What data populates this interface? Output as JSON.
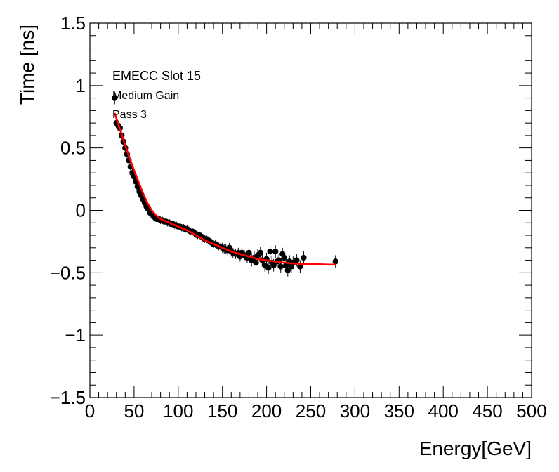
{
  "chart_data": {
    "type": "scatter",
    "xlabel": "Energy[GeV]",
    "ylabel": "Time [ns]",
    "xlim": [
      0,
      500
    ],
    "ylim": [
      -1.5,
      1.5
    ],
    "x_ticks": [
      0,
      50,
      100,
      150,
      200,
      250,
      300,
      350,
      400,
      450,
      500
    ],
    "x_tick_labels": [
      "0",
      "50",
      "100",
      "150",
      "200",
      "250",
      "300",
      "350",
      "400",
      "450",
      "500"
    ],
    "y_ticks": [
      -1.5,
      -1,
      -0.5,
      0,
      0.5,
      1,
      1.5
    ],
    "y_tick_labels": [
      "−1.5",
      "−1",
      "−0.5",
      "0",
      "0.5",
      "1",
      "1.5"
    ],
    "grid": false,
    "annotations": [
      "EMECC Slot 15",
      "Medium Gain",
      "Pass 3"
    ],
    "colors": {
      "points": "#000000",
      "fit": "#ff0000",
      "frame": "#000000"
    },
    "series": [
      {
        "type": "scatter_with_errorbars",
        "points": [
          [
            28,
            0.9,
            0.05
          ],
          [
            30,
            0.7,
            0.04
          ],
          [
            32,
            0.68,
            0.04
          ],
          [
            34,
            0.66,
            0.03
          ],
          [
            36,
            0.6,
            0.03
          ],
          [
            38,
            0.55,
            0.03
          ],
          [
            40,
            0.5,
            0.03
          ],
          [
            42,
            0.45,
            0.03
          ],
          [
            44,
            0.4,
            0.03
          ],
          [
            46,
            0.35,
            0.03
          ],
          [
            48,
            0.3,
            0.03
          ],
          [
            50,
            0.27,
            0.03
          ],
          [
            52,
            0.23,
            0.03
          ],
          [
            54,
            0.19,
            0.03
          ],
          [
            56,
            0.15,
            0.03
          ],
          [
            58,
            0.12,
            0.03
          ],
          [
            60,
            0.09,
            0.03
          ],
          [
            62,
            0.06,
            0.03
          ],
          [
            64,
            0.03,
            0.03
          ],
          [
            66,
            0.01,
            0.03
          ],
          [
            68,
            -0.02,
            0.03
          ],
          [
            70,
            -0.03,
            0.03
          ],
          [
            72,
            -0.05,
            0.03
          ],
          [
            74,
            -0.06,
            0.03
          ],
          [
            76,
            -0.07,
            0.03
          ],
          [
            78,
            -0.07,
            0.03
          ],
          [
            80,
            -0.08,
            0.03
          ],
          [
            82,
            -0.08,
            0.03
          ],
          [
            84,
            -0.09,
            0.03
          ],
          [
            86,
            -0.09,
            0.03
          ],
          [
            88,
            -0.1,
            0.03
          ],
          [
            90,
            -0.1,
            0.03
          ],
          [
            92,
            -0.11,
            0.03
          ],
          [
            94,
            -0.11,
            0.03
          ],
          [
            96,
            -0.12,
            0.03
          ],
          [
            98,
            -0.12,
            0.03
          ],
          [
            100,
            -0.13,
            0.03
          ],
          [
            102,
            -0.13,
            0.03
          ],
          [
            104,
            -0.14,
            0.03
          ],
          [
            106,
            -0.14,
            0.03
          ],
          [
            108,
            -0.15,
            0.03
          ],
          [
            110,
            -0.15,
            0.03
          ],
          [
            112,
            -0.16,
            0.03
          ],
          [
            114,
            -0.17,
            0.03
          ],
          [
            116,
            -0.17,
            0.03
          ],
          [
            118,
            -0.18,
            0.03
          ],
          [
            120,
            -0.19,
            0.03
          ],
          [
            122,
            -0.2,
            0.03
          ],
          [
            124,
            -0.2,
            0.03
          ],
          [
            126,
            -0.21,
            0.03
          ],
          [
            128,
            -0.22,
            0.03
          ],
          [
            130,
            -0.23,
            0.03
          ],
          [
            132,
            -0.23,
            0.03
          ],
          [
            134,
            -0.24,
            0.03
          ],
          [
            136,
            -0.25,
            0.03
          ],
          [
            138,
            -0.26,
            0.03
          ],
          [
            140,
            -0.27,
            0.03
          ],
          [
            142,
            -0.27,
            0.03
          ],
          [
            144,
            -0.28,
            0.03
          ],
          [
            146,
            -0.29,
            0.03
          ],
          [
            148,
            -0.29,
            0.03
          ],
          [
            150,
            -0.3,
            0.04
          ],
          [
            152,
            -0.31,
            0.04
          ],
          [
            154,
            -0.31,
            0.04
          ],
          [
            156,
            -0.32,
            0.04
          ],
          [
            158,
            -0.3,
            0.04
          ],
          [
            160,
            -0.33,
            0.04
          ],
          [
            162,
            -0.34,
            0.04
          ],
          [
            165,
            -0.35,
            0.04
          ],
          [
            168,
            -0.34,
            0.04
          ],
          [
            170,
            -0.37,
            0.04
          ],
          [
            172,
            -0.34,
            0.04
          ],
          [
            175,
            -0.36,
            0.04
          ],
          [
            178,
            -0.38,
            0.04
          ],
          [
            180,
            -0.34,
            0.05
          ],
          [
            183,
            -0.4,
            0.05
          ],
          [
            186,
            -0.38,
            0.05
          ],
          [
            188,
            -0.42,
            0.05
          ],
          [
            190,
            -0.36,
            0.05
          ],
          [
            193,
            -0.34,
            0.05
          ],
          [
            195,
            -0.4,
            0.05
          ],
          [
            198,
            -0.44,
            0.05
          ],
          [
            200,
            -0.39,
            0.05
          ],
          [
            202,
            -0.46,
            0.05
          ],
          [
            204,
            -0.33,
            0.05
          ],
          [
            206,
            -0.42,
            0.05
          ],
          [
            208,
            -0.44,
            0.05
          ],
          [
            210,
            -0.33,
            0.05
          ],
          [
            212,
            -0.41,
            0.05
          ],
          [
            214,
            -0.4,
            0.05
          ],
          [
            216,
            -0.45,
            0.05
          ],
          [
            218,
            -0.35,
            0.05
          ],
          [
            220,
            -0.38,
            0.05
          ],
          [
            222,
            -0.44,
            0.05
          ],
          [
            224,
            -0.48,
            0.05
          ],
          [
            226,
            -0.41,
            0.05
          ],
          [
            228,
            -0.45,
            0.05
          ],
          [
            230,
            -0.42,
            0.05
          ],
          [
            234,
            -0.4,
            0.05
          ],
          [
            238,
            -0.45,
            0.05
          ],
          [
            242,
            -0.38,
            0.05
          ],
          [
            278,
            -0.41,
            0.05
          ]
        ]
      }
    ],
    "fit": {
      "x": [
        28,
        35,
        40,
        45,
        50,
        55,
        60,
        65,
        70,
        75,
        80,
        90,
        100,
        110,
        120,
        130,
        140,
        150,
        160,
        170,
        180,
        190,
        200,
        210,
        220,
        230,
        240,
        250,
        260,
        270,
        278
      ],
      "y": [
        0.78,
        0.63,
        0.52,
        0.42,
        0.32,
        0.23,
        0.14,
        0.06,
        0.0,
        -0.04,
        -0.07,
        -0.1,
        -0.13,
        -0.16,
        -0.2,
        -0.24,
        -0.27,
        -0.3,
        -0.33,
        -0.35,
        -0.37,
        -0.39,
        -0.4,
        -0.41,
        -0.42,
        -0.425,
        -0.43,
        -0.43,
        -0.432,
        -0.435,
        -0.435
      ]
    }
  }
}
